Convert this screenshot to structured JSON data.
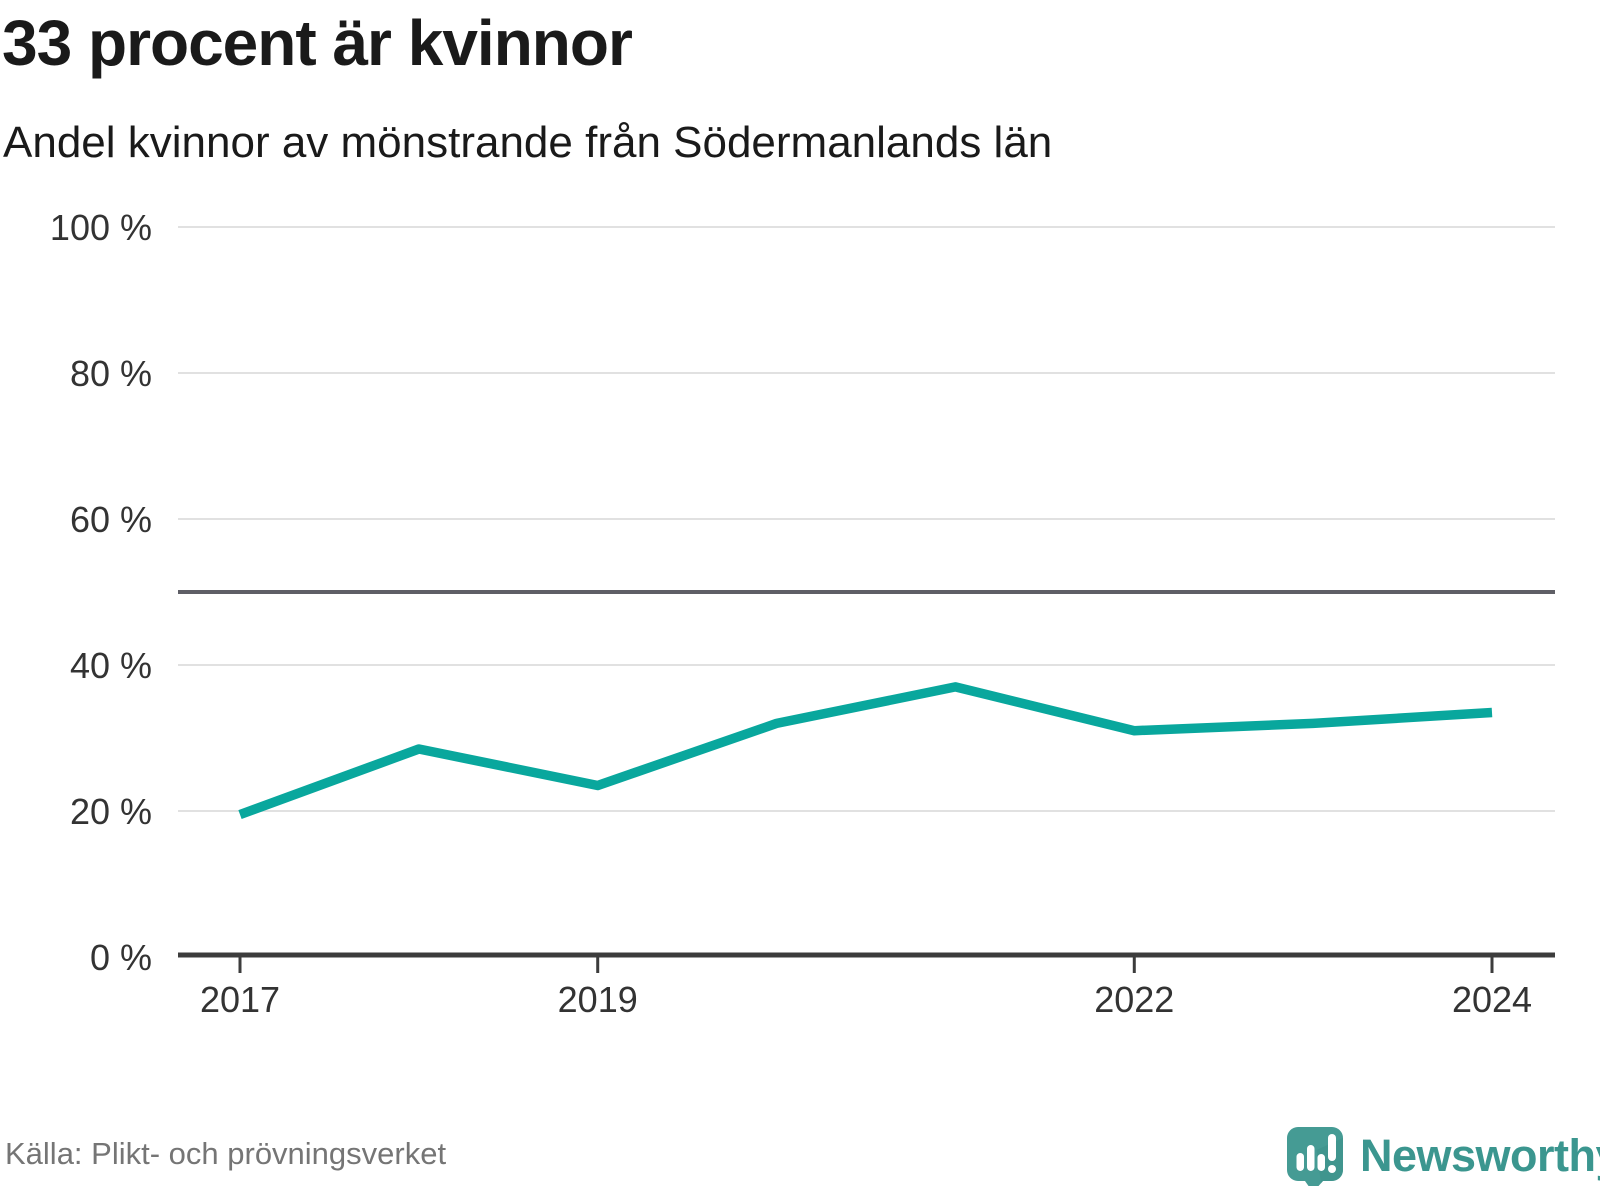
{
  "header": {
    "title": "33 procent är kvinnor",
    "subtitle": "Andel kvinnor av mönstrande från Södermanlands län"
  },
  "footer": {
    "source": "Källa: Plikt- och prövningsverket",
    "brand_name": "Newsworthy",
    "brand_icon": "newsworthy-speech-bubble-chart-icon"
  },
  "colors": {
    "line": "#09a79d",
    "grid": "#e1e1e1",
    "axis": "#3c3c3c",
    "reference_line": "#5f5f66",
    "tick_label": "#333333",
    "heading_text": "#1a1a1a",
    "muted_text": "#757575",
    "brand_teal": "#3b968f",
    "logo_background": "#459b94",
    "logo_shade": "#3d8f89"
  },
  "chart_data": {
    "type": "line",
    "title": "33 procent är kvinnor",
    "subtitle": "Andel kvinnor av mönstrande från Södermanlands län",
    "x": [
      2017,
      2018,
      2019,
      2020,
      2021,
      2022,
      2023,
      2024
    ],
    "series": [
      {
        "name": "Andel kvinnor av mönstrande",
        "values": [
          19.5,
          28.5,
          23.5,
          32,
          37,
          31,
          32,
          33.5
        ]
      }
    ],
    "unit": "%",
    "ylim": [
      0,
      100
    ],
    "yticks": [
      0,
      20,
      40,
      60,
      80,
      100
    ],
    "ytick_labels": [
      "0 %",
      "20 %",
      "40 %",
      "60 %",
      "80 %",
      "100 %"
    ],
    "xticks": [
      2017,
      2019,
      2022,
      2024
    ],
    "xtick_labels": [
      "2017",
      "2019",
      "2022",
      "2024"
    ],
    "reference_line": 50,
    "grid": "horizontal",
    "legend": "none"
  }
}
